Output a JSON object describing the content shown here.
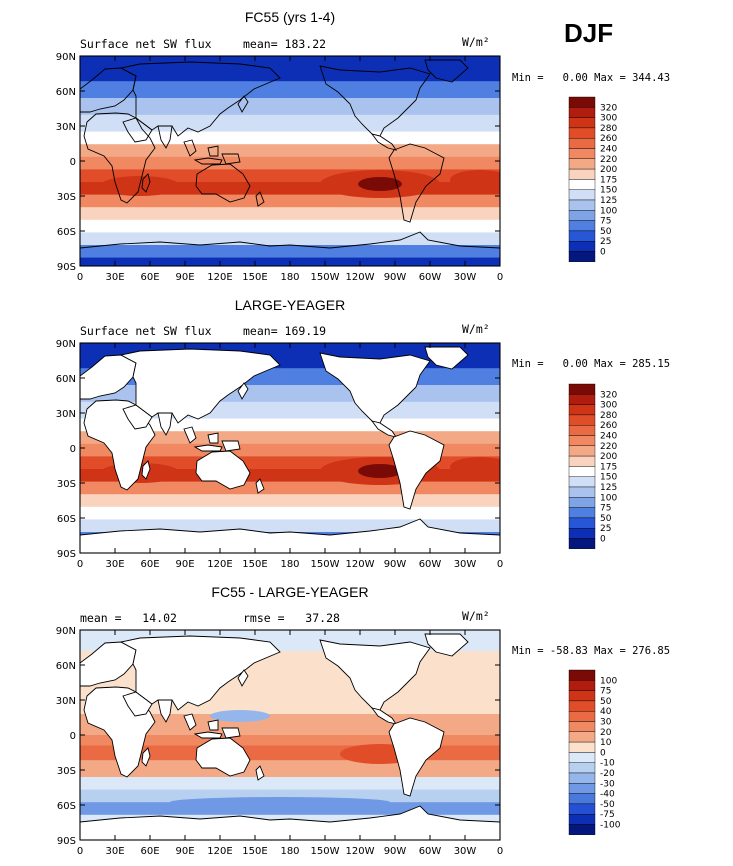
{
  "season": "DJF",
  "units_label": "W/m²",
  "x_ticks": [
    "0",
    "30E",
    "60E",
    "90E",
    "120E",
    "150E",
    "180",
    "150W",
    "120W",
    "90W",
    "60W",
    "30W",
    "0"
  ],
  "y_ticks": [
    "90N",
    "60N",
    "30N",
    "0",
    "30S",
    "60S",
    "90S"
  ],
  "panels": [
    {
      "title": "FC55 (yrs 1-4)",
      "left_label": "Surface net SW flux",
      "mid_label": "mean= 183.22",
      "minmax": "Min =   0.00 Max = 344.43",
      "colorbar": {
        "levels": [
          "320",
          "300",
          "280",
          "260",
          "240",
          "220",
          "200",
          "175",
          "150",
          "125",
          "100",
          "75",
          "50",
          "25",
          "0"
        ],
        "colors": [
          "#7a0a06",
          "#b01c0d",
          "#cf3417",
          "#e04d28",
          "#ea6a44",
          "#f08862",
          "#f4a986",
          "#f9d3bd",
          "#ffffff",
          "#d0dff5",
          "#a9c3ee",
          "#7ea4e6",
          "#4f7fe0",
          "#2756d6",
          "#0c2fb5",
          "#03177e"
        ]
      },
      "map": {
        "land_masked": false,
        "palette": "sw"
      }
    },
    {
      "title": "LARGE-YEAGER",
      "left_label": "Surface net SW flux",
      "mid_label": "mean= 169.19",
      "minmax": "Min =   0.00 Max = 285.15",
      "colorbar": {
        "levels": [
          "320",
          "300",
          "280",
          "260",
          "240",
          "220",
          "200",
          "175",
          "150",
          "125",
          "100",
          "75",
          "50",
          "25",
          "0"
        ],
        "colors": [
          "#7a0a06",
          "#b01c0d",
          "#cf3417",
          "#e04d28",
          "#ea6a44",
          "#f08862",
          "#f4a986",
          "#f9d3bd",
          "#ffffff",
          "#d0dff5",
          "#a9c3ee",
          "#7ea4e6",
          "#4f7fe0",
          "#2756d6",
          "#0c2fb5",
          "#03177e"
        ]
      },
      "map": {
        "land_masked": true,
        "palette": "sw"
      }
    },
    {
      "title": "FC55 - LARGE-YEAGER",
      "left_label": "mean =   14.02",
      "mid_label": "rmse =   37.28",
      "minmax": "Min = -58.83 Max = 276.85",
      "colorbar": {
        "levels": [
          "100",
          "75",
          "50",
          "40",
          "30",
          "20",
          "10",
          "0",
          "-10",
          "-20",
          "-30",
          "-40",
          "-50",
          "-75",
          "-100"
        ],
        "colors": [
          "#7a0a06",
          "#b01c0d",
          "#cf3417",
          "#e04d28",
          "#ea6a44",
          "#f08862",
          "#f4a986",
          "#fbe0cc",
          "#dbe8f7",
          "#b8d0f0",
          "#95b6ea",
          "#6f99e4",
          "#4a79dd",
          "#2550d3",
          "#0c2fb5",
          "#03177e"
        ]
      },
      "map": {
        "land_masked": true,
        "palette": "diff"
      }
    }
  ]
}
